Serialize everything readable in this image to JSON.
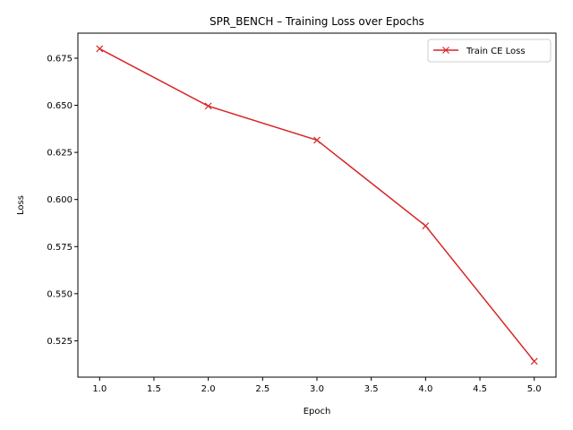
{
  "chart_data": {
    "type": "line",
    "title": "SPR_BENCH – Training Loss over Epochs",
    "xlabel": "Epoch",
    "ylabel": "Loss",
    "xlim": [
      0.8,
      5.2
    ],
    "ylim": [
      0.5057,
      0.6883
    ],
    "x_ticks": [
      "1.0",
      "1.5",
      "2.0",
      "2.5",
      "3.0",
      "3.5",
      "4.0",
      "4.5",
      "5.0"
    ],
    "y_ticks": [
      "0.525",
      "0.550",
      "0.575",
      "0.600",
      "0.625",
      "0.650",
      "0.675"
    ],
    "grid": false,
    "legend_position": "top-right",
    "series": [
      {
        "name": "Train CE Loss",
        "color": "#d62728",
        "marker": "x",
        "x": [
          1.0,
          2.0,
          3.0,
          4.0,
          5.0
        ],
        "y": [
          0.68,
          0.6496,
          0.6315,
          0.586,
          0.5141
        ]
      }
    ]
  }
}
